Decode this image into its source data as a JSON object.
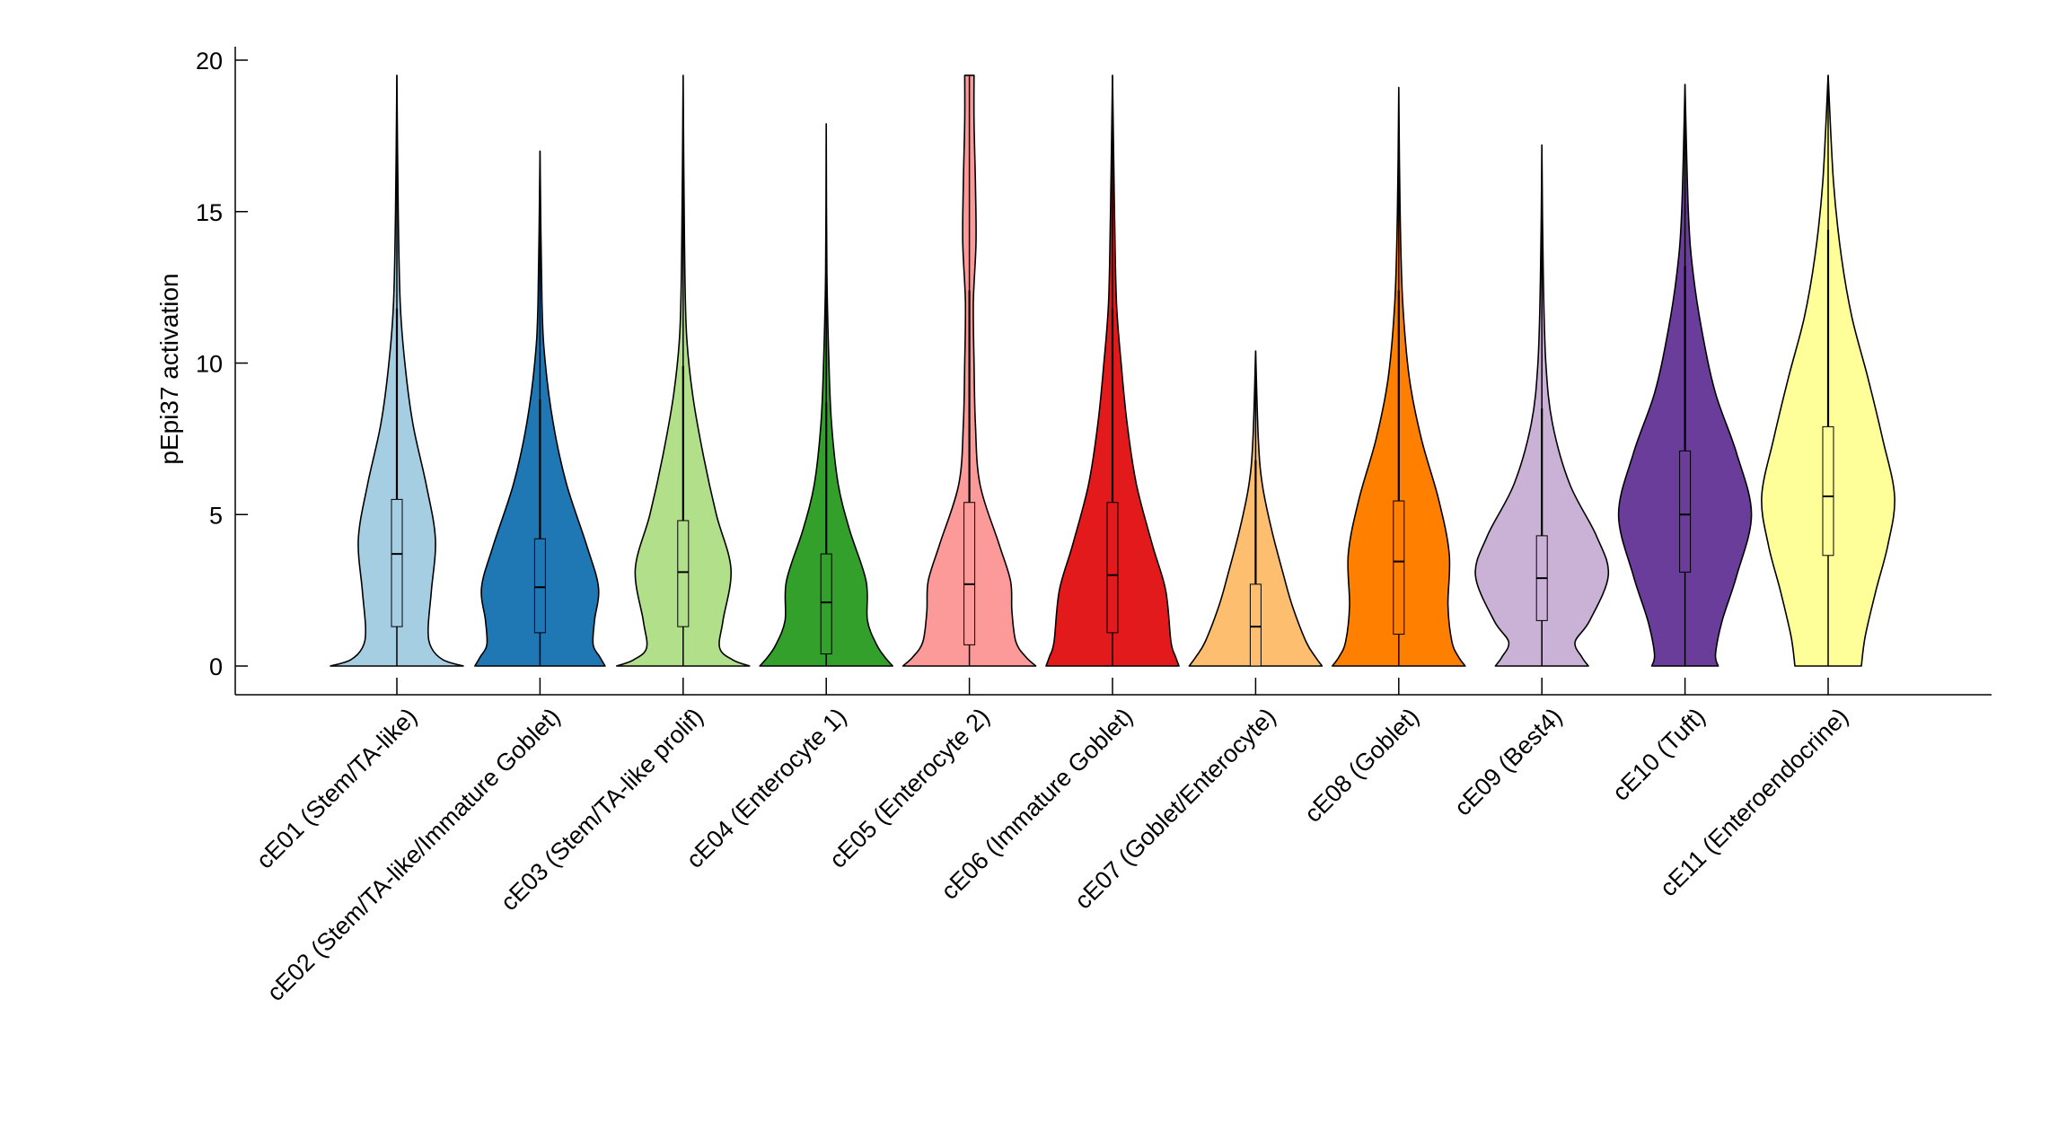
{
  "chart_data": {
    "type": "violin",
    "title": "",
    "xlabel": "",
    "ylabel": "pEpi37 activation",
    "ylim": [
      -1,
      20.4
    ],
    "yticks": [
      0,
      5,
      10,
      15,
      20
    ],
    "ytick_labels": [
      "0",
      "5",
      "10",
      "15",
      "20"
    ],
    "grid": false,
    "legend": "none",
    "categories": [
      "cE01 (Stem/TA-like)",
      "cE02 (Stem/TA-like/Immature Goblet)",
      "cE03 (Stem/TA-like prolif)",
      "cE04 (Enterocyte 1)",
      "cE05 (Enterocyte 2)",
      "cE06 (Immature Goblet)",
      "cE07 (Goblet/Enterocyte)",
      "cE08 (Goblet)",
      "cE09 (Best4)",
      "cE10 (Tuft)",
      "cE11 (Enteroendocrine)"
    ],
    "series": [
      {
        "color": "#a6cee3",
        "q1": 1.3,
        "median": 3.7,
        "q3": 5.5,
        "whisker_high": 11.8,
        "max": 19.5,
        "density": [
          [
            0,
            1
          ],
          [
            0.2,
            0.7
          ],
          [
            0.6,
            0.52
          ],
          [
            1.2,
            0.47
          ],
          [
            2.5,
            0.52
          ],
          [
            4.2,
            0.58
          ],
          [
            6,
            0.44
          ],
          [
            8,
            0.24
          ],
          [
            10,
            0.12
          ],
          [
            12,
            0.05
          ],
          [
            15,
            0.02
          ],
          [
            19.5,
            0
          ]
        ]
      },
      {
        "color": "#1f78b4",
        "q1": 1.1,
        "median": 2.6,
        "q3": 4.2,
        "whisker_high": 8.8,
        "max": 17.0,
        "density": [
          [
            0,
            0.98
          ],
          [
            0.3,
            0.9
          ],
          [
            0.7,
            0.8
          ],
          [
            1.5,
            0.82
          ],
          [
            2.6,
            0.88
          ],
          [
            4,
            0.7
          ],
          [
            6,
            0.4
          ],
          [
            8,
            0.2
          ],
          [
            10,
            0.08
          ],
          [
            12,
            0.03
          ],
          [
            17,
            0
          ]
        ]
      },
      {
        "color": "#b2df8a",
        "q1": 1.3,
        "median": 3.1,
        "q3": 4.8,
        "whisker_high": 9.9,
        "max": 19.5,
        "density": [
          [
            0,
            1
          ],
          [
            0.2,
            0.75
          ],
          [
            0.6,
            0.55
          ],
          [
            1.5,
            0.6
          ],
          [
            3.2,
            0.72
          ],
          [
            5,
            0.5
          ],
          [
            7,
            0.3
          ],
          [
            9,
            0.14
          ],
          [
            11,
            0.05
          ],
          [
            14,
            0.02
          ],
          [
            19.5,
            0
          ]
        ]
      },
      {
        "color": "#33a02c",
        "q1": 0.4,
        "median": 2.1,
        "q3": 3.7,
        "whisker_high": 8.7,
        "max": 17.9,
        "density": [
          [
            0,
            1
          ],
          [
            0.3,
            0.88
          ],
          [
            0.7,
            0.76
          ],
          [
            1.5,
            0.62
          ],
          [
            2.8,
            0.6
          ],
          [
            4.5,
            0.35
          ],
          [
            6,
            0.18
          ],
          [
            8,
            0.08
          ],
          [
            10,
            0.04
          ],
          [
            13,
            0.01
          ],
          [
            17.9,
            0
          ]
        ]
      },
      {
        "color": "#fb9a99",
        "q1": 0.7,
        "median": 2.7,
        "q3": 5.4,
        "whisker_high": 12.4,
        "max": 19.5,
        "density": [
          [
            0,
            1
          ],
          [
            0.3,
            0.85
          ],
          [
            0.8,
            0.7
          ],
          [
            1.8,
            0.64
          ],
          [
            2.8,
            0.62
          ],
          [
            4,
            0.45
          ],
          [
            6,
            0.16
          ],
          [
            8,
            0.09
          ],
          [
            10,
            0.07
          ],
          [
            12,
            0.06
          ],
          [
            14,
            0.1
          ],
          [
            16,
            0.09
          ],
          [
            18,
            0.07
          ],
          [
            19.5,
            0.07
          ]
        ]
      },
      {
        "color": "#e31a1c",
        "q1": 1.1,
        "median": 3.0,
        "q3": 5.4,
        "whisker_high": 11.8,
        "max": 19.5,
        "density": [
          [
            0,
            1
          ],
          [
            0.3,
            0.95
          ],
          [
            0.8,
            0.88
          ],
          [
            2.5,
            0.8
          ],
          [
            4,
            0.6
          ],
          [
            6,
            0.36
          ],
          [
            8,
            0.22
          ],
          [
            10,
            0.13
          ],
          [
            12,
            0.06
          ],
          [
            15,
            0.03
          ],
          [
            19.5,
            0
          ]
        ]
      },
      {
        "color": "#fdbf6f",
        "q1": 0.0,
        "median": 1.3,
        "q3": 2.7,
        "whisker_high": 6.8,
        "max": 10.4,
        "density": [
          [
            0,
            1
          ],
          [
            0.3,
            0.9
          ],
          [
            0.8,
            0.76
          ],
          [
            2,
            0.55
          ],
          [
            3,
            0.42
          ],
          [
            4.5,
            0.24
          ],
          [
            6,
            0.1
          ],
          [
            7.5,
            0.04
          ],
          [
            10.4,
            0
          ]
        ]
      },
      {
        "color": "#ff7f00",
        "q1": 1.05,
        "median": 3.45,
        "q3": 5.45,
        "whisker_high": 12.4,
        "max": 19.1,
        "density": [
          [
            0,
            1
          ],
          [
            0.3,
            0.9
          ],
          [
            0.8,
            0.8
          ],
          [
            2,
            0.74
          ],
          [
            3.7,
            0.76
          ],
          [
            5.5,
            0.6
          ],
          [
            7.5,
            0.34
          ],
          [
            9.5,
            0.16
          ],
          [
            12,
            0.06
          ],
          [
            15,
            0.02
          ],
          [
            19.1,
            0
          ]
        ]
      },
      {
        "color": "#cab2d6",
        "q1": 1.5,
        "median": 2.9,
        "q3": 4.3,
        "whisker_high": 8.5,
        "max": 17.2,
        "density": [
          [
            0,
            0.7
          ],
          [
            0.3,
            0.6
          ],
          [
            0.8,
            0.5
          ],
          [
            1.5,
            0.72
          ],
          [
            3,
            1
          ],
          [
            4.3,
            0.82
          ],
          [
            6,
            0.42
          ],
          [
            8,
            0.16
          ],
          [
            10,
            0.06
          ],
          [
            13,
            0.02
          ],
          [
            17.2,
            0
          ]
        ]
      },
      {
        "color": "#6a3d9a",
        "q1": 3.1,
        "median": 5.0,
        "q3": 7.1,
        "whisker_high": 13.2,
        "max": 19.2,
        "density": [
          [
            0,
            0.5
          ],
          [
            0.4,
            0.46
          ],
          [
            1.5,
            0.56
          ],
          [
            3,
            0.78
          ],
          [
            5,
            1
          ],
          [
            7,
            0.78
          ],
          [
            9,
            0.46
          ],
          [
            11,
            0.26
          ],
          [
            13,
            0.12
          ],
          [
            15,
            0.05
          ],
          [
            19.2,
            0
          ]
        ]
      },
      {
        "color": "#ffff99",
        "q1": 3.65,
        "median": 5.6,
        "q3": 7.9,
        "whisker_high": 14.4,
        "max": 19.5,
        "density": [
          [
            0,
            0.5
          ],
          [
            1,
            0.56
          ],
          [
            2.5,
            0.72
          ],
          [
            4,
            0.9
          ],
          [
            5.6,
            1
          ],
          [
            7.5,
            0.82
          ],
          [
            9.5,
            0.6
          ],
          [
            11.5,
            0.36
          ],
          [
            13.5,
            0.2
          ],
          [
            16,
            0.08
          ],
          [
            19.5,
            0
          ]
        ]
      }
    ]
  }
}
